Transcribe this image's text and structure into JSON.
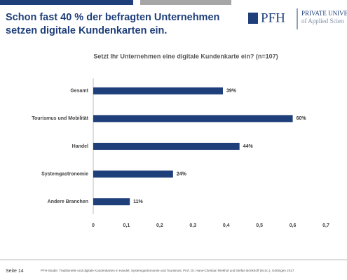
{
  "header": {
    "title_lines": [
      "Schon fast 40 % der befragten Unternehmen",
      "setzen digitale Kundenkarten ein."
    ],
    "logo_mark": "PFH",
    "logo_line1": "PRIVATE UNIVERS",
    "logo_line2": "of Applied Scien"
  },
  "chart_data": {
    "type": "hbar",
    "title": "Setzt Ihr Unternehmen eine digitale Kundenkarte ein? (n=107)",
    "categories": [
      "Gesamt",
      "Tourismus und Mobilität",
      "Handel",
      "Systemgastronomie",
      "Andere Branchen"
    ],
    "values": [
      0.39,
      0.6,
      0.44,
      0.24,
      0.11
    ],
    "value_labels": [
      "39%",
      "60%",
      "44%",
      "24%",
      "11%"
    ],
    "color": "#1f3f7a",
    "xlim": [
      0,
      0.7
    ],
    "xticks": [
      0,
      {
        "value": 0.1,
        "label": "0,1"
      },
      {
        "value": 0.2,
        "label": "0,2"
      },
      {
        "value": 0.3,
        "label": "0,3"
      },
      {
        "value": 0.4,
        "label": "0,4"
      },
      {
        "value": 0.5,
        "label": "0,5"
      },
      {
        "value": 0.6,
        "label": "0,6"
      },
      {
        "value": 0.7,
        "label": "0,7"
      }
    ],
    "grid": false
  },
  "footer": {
    "page": "Seite 14",
    "source": "PFH-Studie: Traditionelle und digitale Kundenkarten in Handel, Systemgastronomie und Tourismus, Prof. Dr. Hans-Christian Riekhof und Stefan Brinkhoff (M.Sc.), Göttingen 2017"
  }
}
